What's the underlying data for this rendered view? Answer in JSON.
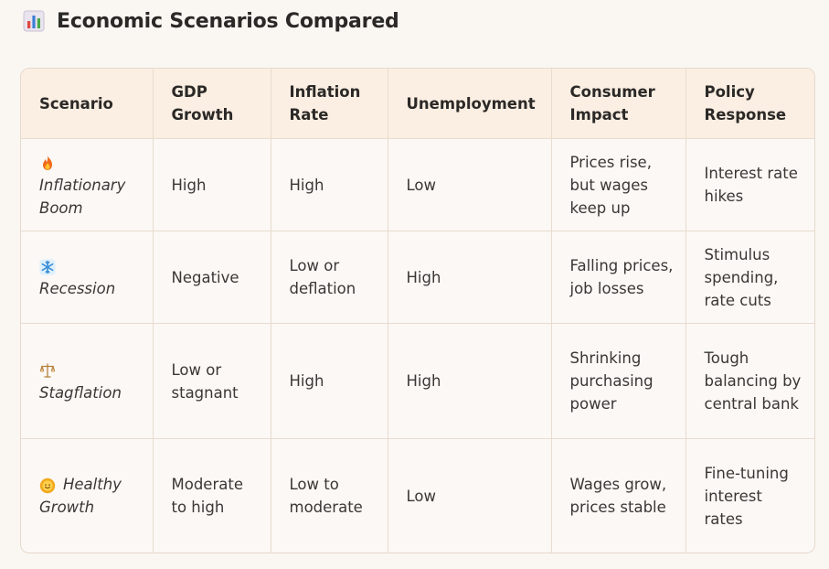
{
  "title": "Economic Scenarios Compared",
  "title_icon": "bar-chart-icon",
  "columns": [
    "Scenario",
    "GDP Growth",
    "Inflation Rate",
    "Unemployment",
    "Consumer Impact",
    "Policy Response"
  ],
  "rows": [
    {
      "icon": "fire-icon",
      "scenario": "Inflationary Boom",
      "gdp": "High",
      "inflation": "High",
      "unemployment": "Low",
      "consumer": "Prices rise, but wages keep up",
      "policy": "Interest rate hikes"
    },
    {
      "icon": "snowflake-icon",
      "scenario": "Recession",
      "gdp": "Negative",
      "inflation": "Low or deflation",
      "unemployment": "High",
      "consumer": "Falling prices, job losses",
      "policy": "Stimulus spending, rate cuts"
    },
    {
      "icon": "scales-icon",
      "scenario": "Stagflation",
      "gdp": "Low or stagnant",
      "inflation": "High",
      "unemployment": "High",
      "consumer": "Shrinking purchasing power",
      "policy": "Tough balancing by central bank"
    },
    {
      "icon": "smiling-sun-icon",
      "scenario": "Healthy Growth",
      "gdp": "Moderate to high",
      "inflation": "Low to moderate",
      "unemployment": "Low",
      "consumer": "Wages grow, prices stable",
      "policy": "Fine-tuning interest rates"
    }
  ]
}
